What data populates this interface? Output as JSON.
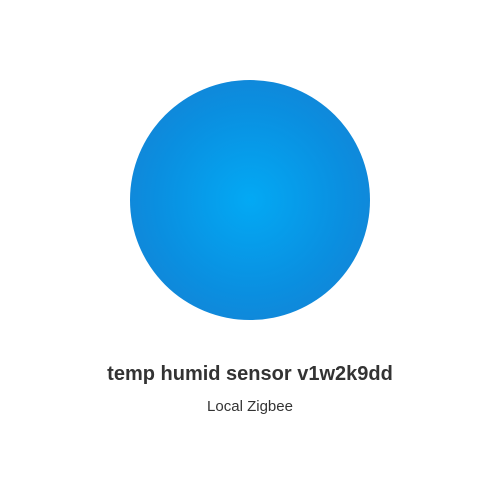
{
  "device": {
    "name": "temp humid sensor v1w2k9dd",
    "protocol": "Local Zigbee",
    "icon": "device-circle-icon",
    "icon_color": "#0a8fe0",
    "icon_highlight": "#03a9f4"
  }
}
